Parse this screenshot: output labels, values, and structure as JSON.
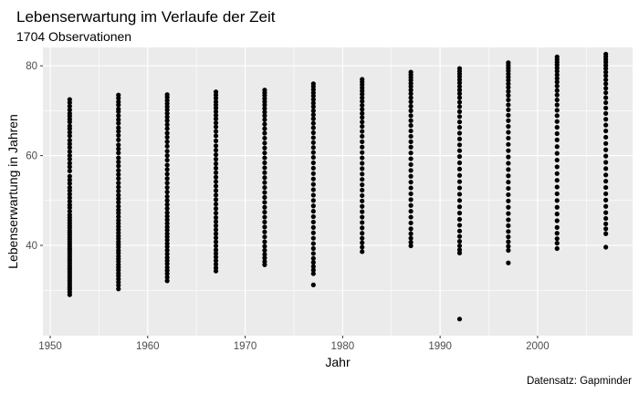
{
  "chart_data": {
    "type": "scatter",
    "title": "Lebenserwartung im Verlaufe der Zeit",
    "subtitle": "1704 Observationen",
    "xlabel": "Jahr",
    "ylabel": "Lebenserwartung in Jahren",
    "caption": "Datensatz: Gapminder",
    "xlim": [
      1949.25,
      2009.75
    ],
    "ylim": [
      19.9,
      84.1
    ],
    "x_ticks": [
      1950,
      1960,
      1970,
      1980,
      1990,
      2000
    ],
    "x_tick_labels": [
      "1950",
      "1960",
      "1970",
      "1980",
      "1990",
      "2000"
    ],
    "y_ticks": [
      40,
      60,
      80
    ],
    "y_tick_labels": [
      "40",
      "60",
      "80"
    ],
    "grid": true,
    "point_color": "#000000",
    "panel_background": "#ebebeb",
    "grid_color": "#ffffff",
    "years": [
      1952,
      1957,
      1962,
      1967,
      1972,
      1977,
      1982,
      1987,
      1992,
      1997,
      2002,
      2007
    ],
    "values_by_year": [
      [
        72.5,
        71.8,
        71.0,
        70.2,
        69.4,
        68.8,
        68.1,
        67.5,
        66.6,
        66.0,
        65.2,
        64.4,
        63.4,
        62.6,
        61.8,
        60.9,
        60.0,
        59.2,
        58.3,
        57.5,
        56.6,
        55.4,
        54.6,
        53.8,
        52.9,
        52.2,
        51.4,
        50.6,
        49.8,
        49.0,
        48.4,
        47.6,
        46.8,
        46.2,
        45.6,
        45.0,
        44.4,
        43.9,
        43.3,
        42.8,
        42.3,
        41.8,
        41.3,
        40.8,
        40.3,
        39.8,
        39.3,
        38.9,
        38.4,
        37.9,
        37.4,
        36.9,
        36.5,
        36.0,
        35.5,
        35.0,
        34.6,
        34.1,
        33.6,
        33.1,
        32.6,
        32.1,
        31.6,
        31.1,
        30.6,
        30.2,
        29.6,
        29.0
      ],
      [
        73.5,
        72.8,
        72.0,
        71.3,
        70.4,
        69.8,
        68.9,
        68.0,
        67.2,
        66.2,
        65.4,
        64.5,
        63.5,
        62.4,
        61.5,
        60.6,
        59.5,
        58.6,
        57.7,
        56.7,
        55.8,
        54.9,
        53.9,
        53.0,
        52.1,
        51.2,
        50.4,
        49.6,
        48.7,
        47.9,
        47.2,
        46.4,
        45.6,
        44.9,
        44.2,
        43.5,
        42.8,
        42.1,
        41.5,
        40.8,
        40.2,
        39.6,
        38.9,
        38.3,
        37.6,
        37.0,
        36.4,
        35.7,
        35.1,
        34.5,
        33.8,
        33.2,
        32.5,
        31.8,
        31.1,
        30.3
      ],
      [
        73.6,
        73.0,
        72.3,
        71.6,
        70.9,
        70.2,
        69.4,
        68.6,
        67.8,
        66.9,
        66.0,
        65.0,
        64.1,
        63.1,
        62.1,
        61.0,
        60.0,
        59.0,
        57.9,
        56.9,
        55.9,
        54.9,
        53.9,
        52.9,
        51.9,
        50.9,
        50.0,
        49.1,
        48.2,
        47.3,
        46.5,
        45.7,
        44.9,
        44.1,
        43.4,
        42.6,
        41.9,
        41.2,
        40.4,
        39.7,
        38.9,
        38.1,
        37.3,
        36.6,
        35.9,
        35.1,
        34.4,
        33.7,
        32.9,
        32.1
      ],
      [
        74.2,
        73.5,
        72.8,
        72.0,
        71.3,
        70.6,
        69.8,
        69.0,
        68.2,
        67.3,
        66.4,
        65.4,
        64.4,
        63.3,
        62.2,
        61.2,
        60.2,
        59.2,
        58.2,
        57.2,
        56.2,
        55.2,
        54.2,
        53.2,
        52.2,
        51.2,
        50.2,
        49.2,
        48.2,
        47.2,
        46.2,
        45.3,
        44.4,
        43.5,
        42.6,
        41.7,
        40.8,
        39.9,
        39.0,
        38.2,
        37.4,
        36.6,
        35.8,
        35.0,
        34.3
      ],
      [
        74.6,
        74.0,
        73.4,
        72.7,
        72.0,
        71.3,
        70.5,
        69.7,
        68.9,
        68.0,
        67.0,
        66.0,
        65.0,
        63.9,
        62.8,
        61.7,
        60.6,
        59.5,
        58.4,
        57.3,
        56.2,
        55.1,
        54.0,
        52.9,
        51.8,
        50.7,
        49.6,
        48.5,
        47.4,
        46.3,
        45.2,
        44.1,
        43.0,
        41.9,
        40.8,
        39.8,
        38.9,
        38.0,
        37.2,
        36.4,
        35.7
      ],
      [
        76.0,
        75.4,
        74.7,
        74.0,
        73.3,
        72.5,
        71.7,
        70.9,
        70.0,
        69.1,
        68.2,
        67.2,
        66.2,
        65.1,
        64.0,
        62.9,
        61.8,
        60.7,
        59.6,
        58.4,
        57.2,
        56.0,
        54.8,
        53.6,
        52.4,
        51.2,
        50.0,
        48.8,
        47.6,
        46.4,
        45.2,
        44.0,
        42.8,
        41.6,
        40.4,
        39.3,
        38.2,
        37.1,
        36.2,
        35.3,
        34.5,
        33.7,
        31.2
      ],
      [
        77.0,
        76.4,
        75.8,
        75.1,
        74.4,
        73.7,
        72.9,
        72.1,
        71.2,
        70.3,
        69.4,
        68.5,
        67.5,
        66.5,
        65.4,
        64.3,
        63.1,
        61.9,
        60.7,
        59.5,
        58.3,
        57.1,
        55.9,
        54.7,
        53.5,
        52.3,
        51.1,
        49.9,
        48.7,
        47.5,
        46.3,
        45.1,
        43.9,
        42.7,
        41.6,
        40.6,
        39.6,
        38.6
      ],
      [
        78.6,
        78.0,
        77.4,
        76.8,
        76.1,
        75.4,
        74.6,
        73.8,
        72.9,
        72.0,
        71.0,
        70.0,
        68.9,
        67.8,
        66.7,
        65.5,
        64.3,
        63.1,
        61.9,
        60.6,
        59.3,
        58.0,
        56.7,
        55.4,
        54.1,
        52.8,
        51.5,
        50.2,
        48.9,
        47.6,
        46.3,
        45.0,
        43.7,
        42.6,
        41.6,
        40.7,
        39.9
      ],
      [
        79.4,
        78.8,
        78.2,
        77.6,
        76.9,
        76.2,
        75.4,
        74.6,
        73.8,
        72.9,
        71.9,
        70.9,
        69.8,
        68.7,
        67.5,
        66.3,
        65.0,
        63.7,
        62.4,
        61.1,
        59.8,
        58.4,
        57.0,
        55.6,
        54.2,
        52.8,
        51.4,
        50.0,
        48.6,
        47.2,
        45.8,
        44.5,
        43.2,
        42.0,
        40.9,
        39.9,
        39.0,
        38.3,
        23.6
      ],
      [
        80.7,
        80.1,
        79.5,
        78.9,
        78.2,
        77.5,
        76.8,
        76.0,
        75.2,
        74.3,
        73.4,
        72.4,
        71.3,
        70.2,
        69.0,
        67.8,
        66.5,
        65.2,
        63.9,
        62.5,
        61.1,
        59.7,
        58.3,
        56.9,
        55.5,
        54.1,
        52.7,
        51.3,
        49.9,
        48.5,
        47.1,
        45.7,
        44.4,
        43.1,
        41.9,
        40.8,
        39.8,
        38.9,
        36.1
      ],
      [
        82.0,
        81.4,
        80.8,
        80.2,
        79.5,
        78.8,
        78.0,
        77.2,
        76.4,
        75.5,
        74.5,
        73.5,
        72.4,
        71.3,
        70.1,
        68.9,
        67.6,
        66.3,
        64.9,
        63.5,
        62.0,
        60.5,
        59.0,
        57.5,
        56.0,
        54.5,
        53.0,
        51.5,
        50.0,
        48.5,
        47.0,
        45.5,
        44.0,
        42.7,
        41.5,
        40.5,
        39.3
      ],
      [
        82.6,
        82.0,
        81.4,
        80.8,
        80.1,
        79.4,
        78.6,
        77.8,
        76.9,
        76.0,
        75.0,
        74.0,
        72.9,
        71.8,
        70.6,
        69.4,
        68.1,
        66.8,
        65.5,
        64.1,
        62.7,
        61.3,
        59.9,
        58.5,
        57.1,
        55.7,
        54.3,
        52.9,
        51.5,
        50.1,
        48.7,
        47.3,
        46.0,
        44.8,
        43.7,
        42.6,
        39.6
      ]
    ]
  }
}
